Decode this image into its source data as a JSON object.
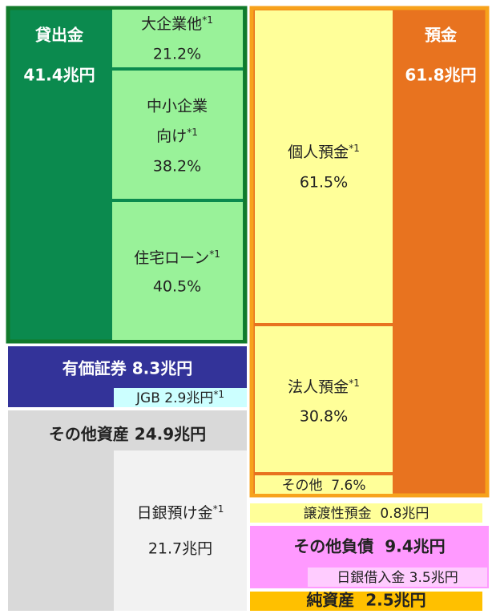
{
  "assets": {
    "loans": {
      "label": "貸出金",
      "amount": "41.4兆円",
      "items": [
        {
          "label": "大企業他",
          "note": "*1",
          "share": "21.2%"
        },
        {
          "label1": "中小企業",
          "label2": "向け",
          "note": "*1",
          "share": "38.2%"
        },
        {
          "label": "住宅ローン",
          "note": "*1",
          "share": "40.5%"
        }
      ]
    },
    "securities": {
      "label": "有価証券 8.3兆円",
      "sub": {
        "label": "JGB 2.9兆円",
        "note": "*1"
      }
    },
    "other": {
      "label": "その他資産 24.9兆円",
      "sub": {
        "label": "日銀預け金",
        "note": "*1",
        "amount": "21.7兆円"
      }
    }
  },
  "liabilities": {
    "deposits": {
      "label": "預金",
      "amount": "61.8兆円",
      "items": [
        {
          "label": "個人預金",
          "note": "*1",
          "share": "61.5%"
        },
        {
          "label": "法人預金",
          "note": "*1",
          "share": "30.8%"
        },
        {
          "label": "その他  7.6%"
        }
      ]
    },
    "cd": {
      "label": "譲渡性預金  0.8兆円"
    },
    "other": {
      "label": "その他負債  9.4兆円",
      "sub": {
        "label": "日銀借入金 3.5兆円"
      }
    },
    "net_assets": {
      "label": "純資産  2.5兆円"
    }
  }
}
